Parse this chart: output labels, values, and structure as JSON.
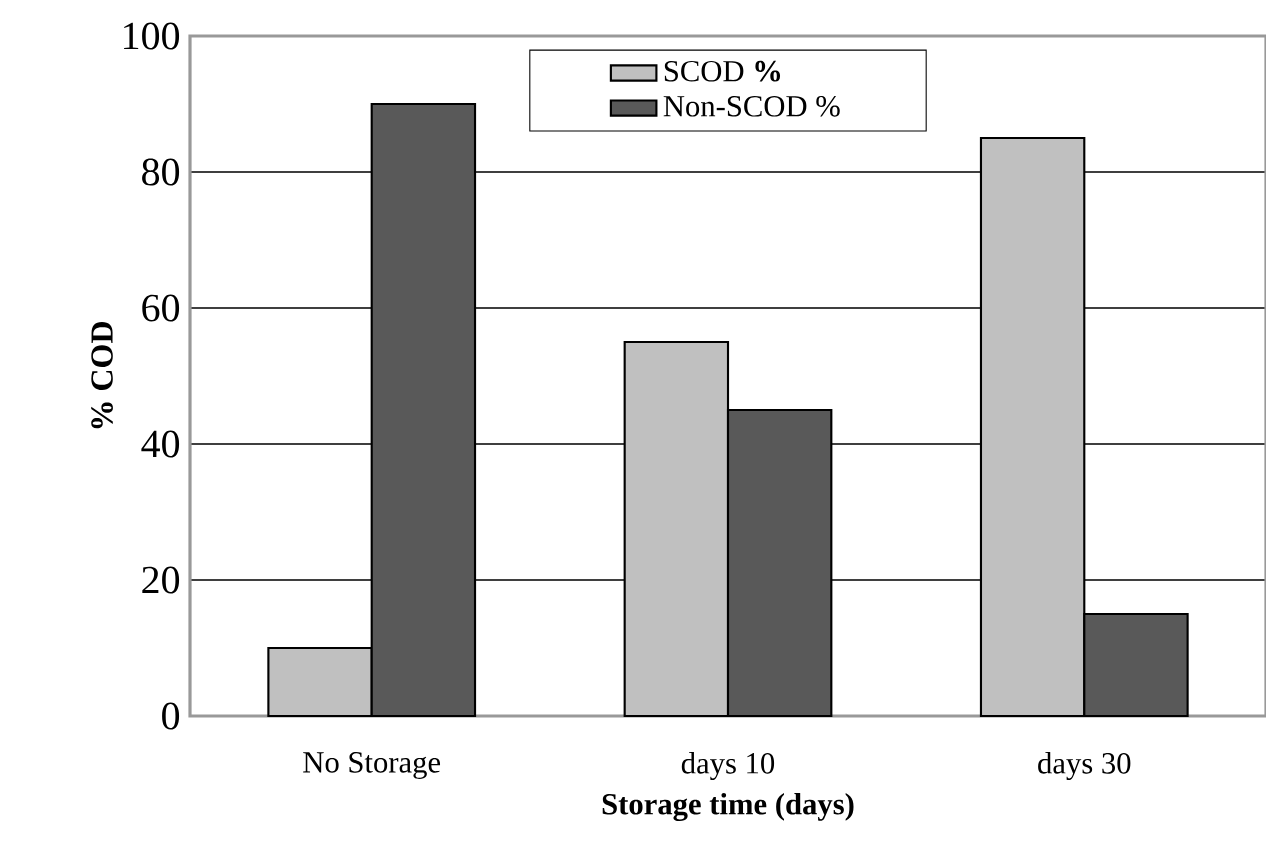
{
  "chart_data": {
    "type": "bar",
    "xlabel": "Storage time (days)",
    "ylabel": "% COD",
    "categories": [
      "No Storage",
      "days 10",
      "days 30"
    ],
    "series": [
      {
        "name": "SCOD **%**",
        "color": "#c0c0c0",
        "values": [
          10,
          55,
          85
        ]
      },
      {
        "name": "Non-SCOD %",
        "color": "#595959",
        "values": [
          90,
          45,
          15
        ]
      }
    ],
    "ylim": [
      0,
      100
    ],
    "yticks": [
      0,
      20,
      40,
      60,
      80,
      100
    ],
    "grid": "y",
    "legend": "top"
  }
}
